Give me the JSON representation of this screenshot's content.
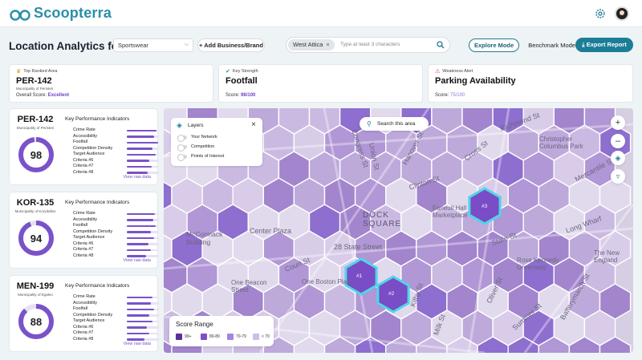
{
  "app": {
    "name": "Scoopterra"
  },
  "header": {
    "title": "Location Analytics for:",
    "category_select": "Sportswear",
    "add_button": "Add Business/Brand",
    "search_chip": "West Attica",
    "search_placeholder": "Type at least 3 characters",
    "mode_explore": "Explore Mode",
    "mode_benchmark": "Benchmark Mode",
    "export_button": "Export Report"
  },
  "summary": {
    "top_ranked": {
      "label": "Top Ranked Area",
      "value": "PER-142",
      "sub": "Municipality of Peristeri",
      "score_label": "Overall Score:",
      "score_value": "Excellent"
    },
    "key_strength": {
      "label": "Key Strength",
      "value": "Footfall",
      "score_label": "Score:",
      "score_value": "98/100"
    },
    "weakness": {
      "label": "Weakness Alert",
      "value": "Parking Availability",
      "score_label": "Score:",
      "score_value": "75/100"
    }
  },
  "panels": [
    {
      "code": "PER-142",
      "municipality": "Municipality of Peristeri",
      "score": 98,
      "kpi_title": "Key Performance Indicators",
      "link": "View raw data",
      "kpis": [
        {
          "name": "Crime Rate",
          "value": 0.92
        },
        {
          "name": "Accessibility",
          "value": 0.85
        },
        {
          "name": "Footfall",
          "value": 0.98
        },
        {
          "name": "Competition Density",
          "value": 0.8
        },
        {
          "name": "Target Audience",
          "value": 0.9
        },
        {
          "name": "Criteria #6",
          "value": 0.7
        },
        {
          "name": "Criteria #7",
          "value": 0.78
        },
        {
          "name": "Criteria #8",
          "value": 0.65
        }
      ]
    },
    {
      "code": "KOR-135",
      "municipality": "Municipality of Korydallos",
      "score": 94,
      "kpi_title": "Key Performance Indicators",
      "link": "View raw data",
      "kpis": [
        {
          "name": "Crime Rate",
          "value": 0.88
        },
        {
          "name": "Accessibility",
          "value": 0.82
        },
        {
          "name": "Footfall",
          "value": 0.9
        },
        {
          "name": "Competition Density",
          "value": 0.75
        },
        {
          "name": "Target Audience",
          "value": 0.86
        },
        {
          "name": "Criteria #6",
          "value": 0.68
        },
        {
          "name": "Criteria #7",
          "value": 0.74
        },
        {
          "name": "Criteria #8",
          "value": 0.6
        }
      ]
    },
    {
      "code": "MEN-199",
      "municipality": "Municipality of Egaleo",
      "score": 88,
      "kpi_title": "Key Performance Indicators",
      "link": "View raw data",
      "kpis": [
        {
          "name": "Crime Rate",
          "value": 0.8
        },
        {
          "name": "Accessibility",
          "value": 0.76
        },
        {
          "name": "Footfall",
          "value": 0.84
        },
        {
          "name": "Competition Density",
          "value": 0.7
        },
        {
          "name": "Target Audience",
          "value": 0.8
        },
        {
          "name": "Criteria #6",
          "value": 0.62
        },
        {
          "name": "Criteria #7",
          "value": 0.7
        },
        {
          "name": "Criteria #8",
          "value": 0.55
        }
      ]
    }
  ],
  "map": {
    "search_area": "Search this area",
    "layers": {
      "title": "Layers",
      "items": [
        "Your Network",
        "Competition",
        "Points of Interest"
      ]
    },
    "legend": {
      "title": "Score Range",
      "items": [
        {
          "label": "90+",
          "color": "#5b2f9a"
        },
        {
          "label": "80-89",
          "color": "#7d4fc4"
        },
        {
          "label": "70-79",
          "color": "#a584dc"
        },
        {
          "label": "< 70",
          "color": "#cdbde9"
        }
      ]
    },
    "highlights": [
      "#1",
      "#2",
      "#3"
    ],
    "streets": [
      "Congress St",
      "Union St",
      "Hanover St",
      "Clinton St",
      "Faneuil Hall Marketplace",
      "Dock Square",
      "Center Plaza",
      "McCormack Building",
      "28 State Street",
      "Court St",
      "One Boston Place",
      "One Beacon Street",
      "Kilby St",
      "State St",
      "Long Wharf",
      "Rose Kennedy Greenway",
      "Christopher Columbus Park",
      "Richmond St",
      "Cross St",
      "Mercantile St",
      "Milk St",
      "Summer St",
      "The New England",
      "Oliver St",
      "Batterymarch St"
    ]
  },
  "colors": {
    "accent": "#1b7d97",
    "purple": "#6b43c2"
  }
}
